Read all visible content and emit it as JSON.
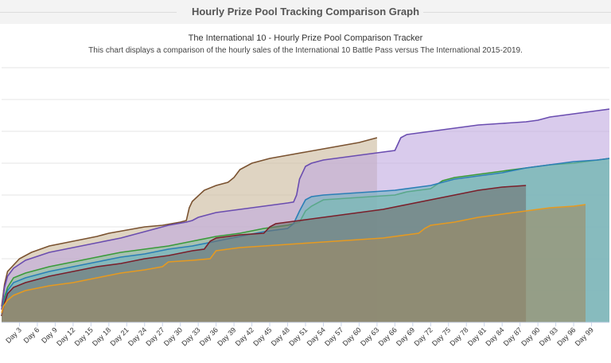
{
  "page": {
    "title": "Hourly Prize Pool Tracking Comparison Graph"
  },
  "chart_data": {
    "type": "area",
    "title": "The International 10 - Hourly Prize Pool Comparison Tracker",
    "subtitle": "This chart displays a comparison of the hourly sales of the International 10 Battle Pass versus The International 2015-2019.",
    "xlabel": "",
    "ylabel": "",
    "x_range": [
      0,
      102
    ],
    "y_range": [
      0,
      80
    ],
    "grid": true,
    "legend": "none",
    "x_tick_labels": [
      "Day 3",
      "Day 6",
      "Day 9",
      "Day 12",
      "Day 15",
      "Day 18",
      "Day 21",
      "Day 24",
      "Day 27",
      "Day 30",
      "Day 33",
      "Day 36",
      "Day 39",
      "Day 42",
      "Day 45",
      "Day 48",
      "Day 51",
      "Day 54",
      "Day 57",
      "Day 60",
      "Day 63",
      "Day 66",
      "Day 69",
      "Day 72",
      "Day 75",
      "Day 78",
      "Day 81",
      "Day 84",
      "Day 87",
      "Day 90",
      "Day 93",
      "Day 96",
      "Day 99"
    ],
    "x_tick_days": [
      3,
      6,
      9,
      12,
      15,
      18,
      21,
      24,
      27,
      30,
      33,
      36,
      39,
      42,
      45,
      48,
      51,
      54,
      57,
      60,
      63,
      66,
      69,
      72,
      75,
      78,
      81,
      84,
      87,
      90,
      93,
      96,
      99
    ],
    "series": [
      {
        "color": "#7a5230",
        "fill": "#c9b79a",
        "x": [
          0,
          0.5,
          1,
          2,
          3,
          5,
          8,
          12,
          16,
          18,
          21,
          24,
          27,
          30,
          31,
          31.5,
          32,
          34,
          36,
          38,
          39,
          40,
          42,
          45,
          48,
          51,
          54,
          57,
          60,
          63
        ],
        "y": [
          5,
          12,
          16,
          18,
          20,
          22,
          24,
          25.5,
          27,
          28,
          29,
          30,
          30.5,
          31.5,
          32,
          36,
          38,
          41.5,
          43,
          44,
          45.5,
          48,
          50,
          51.5,
          52.5,
          53.5,
          54.5,
          55.5,
          56.5,
          58
        ]
      },
      {
        "color": "#6a4db0",
        "fill": "#bfa9e0",
        "x": [
          0,
          0.5,
          1,
          2,
          4,
          8,
          12,
          16,
          20,
          24,
          28,
          31,
          32,
          33,
          36,
          40,
          44,
          48,
          49,
          49.5,
          50,
          51,
          52,
          54,
          58,
          62,
          66,
          66.5,
          67,
          68,
          72,
          76,
          80,
          84,
          88,
          90,
          92,
          96,
          100,
          102
        ],
        "y": [
          4,
          11,
          14.5,
          17,
          19.5,
          22,
          23.5,
          25,
          26.5,
          28.5,
          30.5,
          31.5,
          32,
          33,
          34.5,
          35.5,
          36.5,
          37.5,
          37.8,
          40,
          45,
          49,
          50,
          51,
          52,
          53,
          54,
          56,
          58,
          59,
          60,
          61,
          62,
          62.5,
          63,
          63.5,
          64.5,
          65.5,
          66.5,
          67
        ]
      },
      {
        "color": "#3a9a3a",
        "fill": "#8cc79a",
        "x": [
          0,
          0.5,
          1,
          2,
          4,
          8,
          12,
          16,
          20,
          24,
          28,
          32,
          36,
          40,
          44,
          48,
          50,
          51,
          52,
          54,
          58,
          62,
          66,
          68,
          70,
          72,
          74,
          76,
          80,
          84,
          88,
          92,
          96,
          100,
          102
        ],
        "y": [
          2,
          8,
          11,
          14,
          15.5,
          17.5,
          19,
          20.5,
          22,
          23,
          24,
          25.5,
          27,
          28,
          29.5,
          30.5,
          31.5,
          35,
          36.5,
          38.5,
          39,
          39.5,
          40,
          41,
          41.5,
          42,
          44.5,
          45.5,
          46.5,
          47.5,
          48.5,
          49.5,
          50,
          51,
          51.5
        ]
      },
      {
        "color": "#2b7fb6",
        "fill": "#6fb3c2",
        "x": [
          0,
          0.5,
          1,
          2,
          4,
          8,
          12,
          16,
          20,
          24,
          28,
          32,
          36,
          40,
          44,
          48,
          49,
          50,
          51,
          52,
          54,
          58,
          62,
          66,
          70,
          72,
          74,
          76,
          80,
          84,
          88,
          92,
          96,
          100,
          102
        ],
        "y": [
          2,
          7,
          10,
          12.5,
          14,
          16,
          17.5,
          19,
          20.5,
          21.5,
          23,
          24,
          25.5,
          27,
          28.5,
          29.5,
          31,
          35,
          38.5,
          39.5,
          40,
          40.5,
          41,
          41.5,
          42.5,
          43,
          44,
          45,
          46,
          47,
          48.5,
          49.5,
          50.5,
          51,
          51.5
        ]
      },
      {
        "color": "#7a1f2a",
        "fill": "#6f6f6f",
        "x": [
          0,
          0.5,
          1,
          2,
          4,
          8,
          12,
          16,
          20,
          24,
          28,
          32,
          34,
          35,
          36,
          40,
          44,
          45,
          46,
          48,
          52,
          56,
          60,
          64,
          68,
          72,
          76,
          80,
          84,
          88
        ],
        "y": [
          2,
          6,
          9,
          11,
          12.5,
          14.5,
          16,
          17.5,
          18.5,
          20,
          21,
          22.5,
          23,
          25.5,
          26.5,
          27.5,
          28,
          30,
          31,
          31.5,
          32.5,
          33.5,
          34.5,
          35.5,
          37,
          38.5,
          40,
          41.5,
          42.5,
          43
        ]
      },
      {
        "color": "#e69a20",
        "fill": "#9e8a62",
        "x": [
          0,
          0.3,
          1,
          2,
          4,
          8,
          12,
          16,
          20,
          24,
          27,
          28,
          32,
          35,
          36,
          40,
          44,
          48,
          52,
          56,
          60,
          64,
          68,
          70,
          71,
          72,
          76,
          80,
          84,
          88,
          92,
          96,
          98
        ],
        "y": [
          3,
          5,
          7,
          8.5,
          10,
          11.5,
          12.5,
          14,
          15.5,
          16.5,
          17.5,
          19,
          19.5,
          20,
          22.5,
          23.5,
          24,
          24.5,
          25,
          25.5,
          26,
          26.5,
          27.5,
          28,
          29.5,
          30.5,
          31.5,
          33,
          34,
          35,
          36,
          36.5,
          37
        ]
      }
    ]
  }
}
